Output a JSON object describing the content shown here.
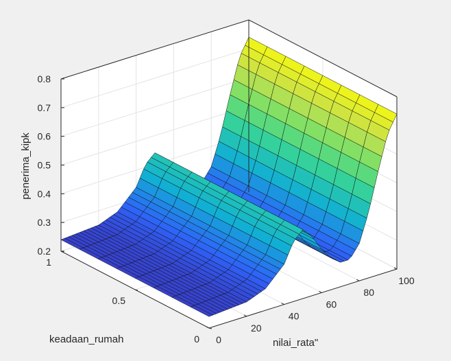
{
  "chart_data": {
    "type": "surface3d",
    "title": "",
    "xlabel": "nilai_rata\"",
    "ylabel": "keadaan_rumah",
    "zlabel": "penerima_kipk",
    "xlim": [
      0,
      100
    ],
    "ylim": [
      0,
      1
    ],
    "zlim": [
      0.2,
      0.8
    ],
    "x_ticks": [
      "0",
      "20",
      "40",
      "60",
      "80",
      "100"
    ],
    "y_ticks": [
      "0",
      "0.5",
      "1"
    ],
    "z_ticks": [
      "0.2",
      "0.3",
      "0.4",
      "0.5",
      "0.6",
      "0.7",
      "0.8"
    ],
    "colormap": [
      "#3e26a8",
      "#2e63f8",
      "#12b0d3",
      "#2fd0a0",
      "#73e06a",
      "#c8e04a",
      "#f8fa0d"
    ],
    "grid": true,
    "surface_profile": {
      "x": [
        0,
        10,
        20,
        30,
        40,
        45,
        50,
        55,
        60,
        65,
        70,
        75,
        80,
        85,
        90,
        95,
        100
      ],
      "z": [
        0.24,
        0.245,
        0.25,
        0.275,
        0.34,
        0.41,
        0.44,
        0.405,
        0.35,
        0.31,
        0.285,
        0.285,
        0.33,
        0.43,
        0.56,
        0.68,
        0.74
      ]
    }
  }
}
